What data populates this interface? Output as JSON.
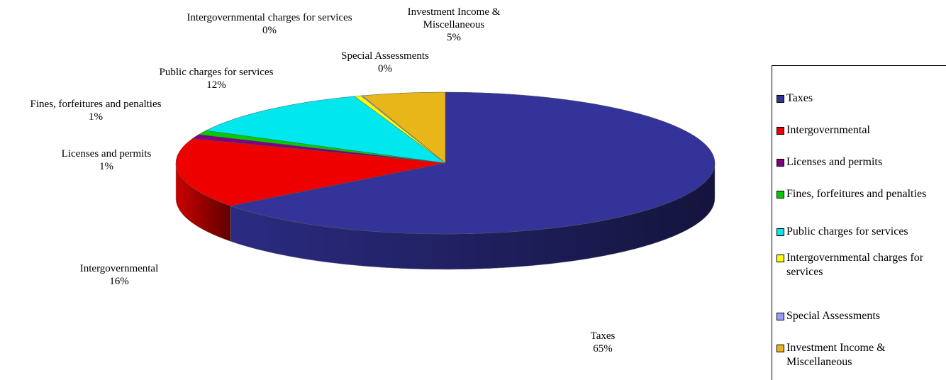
{
  "chart_data": {
    "type": "pie3d",
    "categories": [
      "Taxes",
      "Intergovernmental",
      "Licenses and permits",
      "Fines, forfeitures and penalties",
      "Public charges for services",
      "Intergovernmental charges for services",
      "Special Assessments",
      "Investment Income & Miscellaneous"
    ],
    "values": [
      65,
      16,
      1,
      1,
      12,
      0.4,
      0.1,
      5
    ],
    "value_labels": [
      "65%",
      "16%",
      "1%",
      "1%",
      "12%",
      "0%",
      "0%",
      "5%"
    ],
    "colors": [
      "#333399",
      "#ee0000",
      "#800080",
      "#00cc00",
      "#00e8ee",
      "#ffff00",
      "#9999ff",
      "#e8b618"
    ],
    "legend": "right"
  }
}
